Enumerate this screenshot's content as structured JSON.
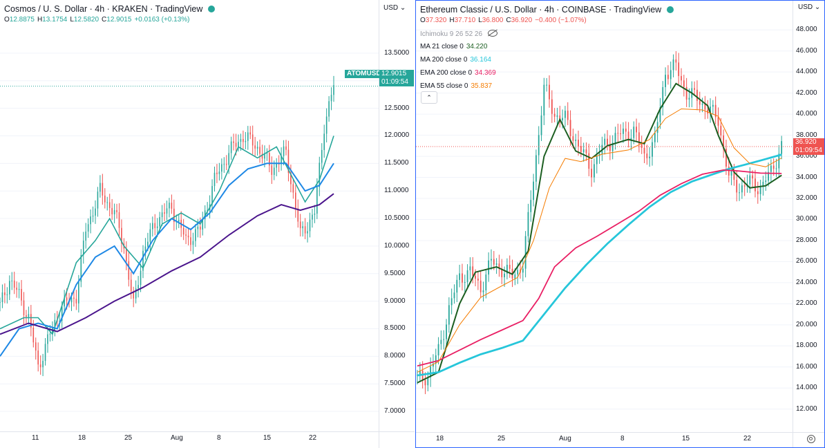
{
  "left": {
    "title": "Cosmos / U. S. Dollar · 4h · KRAKEN · TradingView",
    "ohlc": [
      {
        "k": "O",
        "v": "12.8875"
      },
      {
        "k": "H",
        "v": "13.1754"
      },
      {
        "k": "L",
        "v": "12.5820"
      },
      {
        "k": "C",
        "v": "12.9015"
      },
      {
        "k": "",
        "v": "+0.0163 (+0.13%)"
      }
    ],
    "currency": "USD",
    "symbol_tag": "ATOMUSD",
    "price_tag": "12.9015",
    "countdown": "01:09:54"
  },
  "right": {
    "title": "Ethereum Classic / U.S. Dollar · 4h · COINBASE · TradingView",
    "ohlc": [
      {
        "k": "O",
        "v": "37.320"
      },
      {
        "k": "H",
        "v": "37.710"
      },
      {
        "k": "L",
        "v": "36.800"
      },
      {
        "k": "C",
        "v": "36.920"
      },
      {
        "k": "",
        "v": "−0.400 (−1.07%)"
      }
    ],
    "ichimoku": "Ichimoku 9 26 52 26",
    "indicators": [
      {
        "label": "MA 21 close 0",
        "value": "34.220",
        "color": "#1b5e20"
      },
      {
        "label": "MA 200 close 0",
        "value": "36.164",
        "color": "#26c6da"
      },
      {
        "label": "EMA 200 close 0",
        "value": "34.369",
        "color": "#e91e63"
      },
      {
        "label": "EMA 55 close 0",
        "value": "35.837",
        "color": "#f57c00"
      }
    ],
    "collapse_glyph": "⌃",
    "currency": "USD",
    "price_tag": "36.920",
    "countdown": "01:09:54"
  },
  "colors": {
    "up": "#26a69a",
    "down": "#ef5350",
    "tag_left": "#26a69a",
    "tag_right": "#ef5350",
    "accent": "#2962ff"
  },
  "chart_data": [
    {
      "type": "candlestick",
      "title": "Cosmos / U. S. Dollar · 4h · KRAKEN",
      "x_ticks": [
        "11",
        "18",
        "25",
        "Aug",
        "8",
        "15",
        "22"
      ],
      "y_ticks": [
        "7.0000",
        "7.5000",
        "8.0000",
        "8.5000",
        "9.0000",
        "9.5000",
        "10.0000",
        "10.5000",
        "11.0000",
        "11.5000",
        "12.0000",
        "12.5000",
        "13.0000",
        "13.5000"
      ],
      "ylim": [
        6.85,
        13.75
      ],
      "last_price": 12.9015,
      "price_path": [
        [
          0,
          8.9
        ],
        [
          4,
          9.4
        ],
        [
          8,
          9.1
        ],
        [
          12,
          8.7
        ],
        [
          16,
          7.8
        ],
        [
          20,
          8.3
        ],
        [
          26,
          8.9
        ],
        [
          32,
          9.1
        ],
        [
          36,
          10.3
        ],
        [
          42,
          11.0
        ],
        [
          48,
          10.6
        ],
        [
          52,
          10.0
        ],
        [
          56,
          8.9
        ],
        [
          60,
          9.9
        ],
        [
          66,
          10.5
        ],
        [
          72,
          10.7
        ],
        [
          78,
          10.1
        ],
        [
          84,
          10.3
        ],
        [
          90,
          11.2
        ],
        [
          96,
          11.7
        ],
        [
          102,
          12.0
        ],
        [
          108,
          11.8
        ],
        [
          114,
          11.4
        ],
        [
          120,
          11.7
        ],
        [
          126,
          10.2
        ],
        [
          132,
          10.6
        ],
        [
          136,
          12.2
        ],
        [
          140,
          12.9
        ]
      ],
      "series": [
        {
          "name": "moving average (teal)",
          "color": "#26a69a",
          "points": [
            [
              0,
              8.5
            ],
            [
              10,
              8.7
            ],
            [
              16,
              8.7
            ],
            [
              22,
              8.4
            ],
            [
              32,
              9.7
            ],
            [
              40,
              10.1
            ],
            [
              46,
              10.5
            ],
            [
              52,
              10.0
            ],
            [
              60,
              9.6
            ],
            [
              68,
              10.4
            ],
            [
              76,
              10.6
            ],
            [
              84,
              10.4
            ],
            [
              92,
              11.0
            ],
            [
              100,
              11.8
            ],
            [
              108,
              11.6
            ],
            [
              116,
              11.8
            ],
            [
              122,
              11.3
            ],
            [
              128,
              10.8
            ],
            [
              134,
              11.2
            ],
            [
              140,
              12.0
            ]
          ]
        },
        {
          "name": "moving average (blue)",
          "color": "#1e88e5",
          "points": [
            [
              0,
              8.0
            ],
            [
              8,
              8.5
            ],
            [
              16,
              8.6
            ],
            [
              24,
              8.5
            ],
            [
              32,
              9.3
            ],
            [
              40,
              9.8
            ],
            [
              48,
              10.0
            ],
            [
              56,
              9.5
            ],
            [
              64,
              10.1
            ],
            [
              72,
              10.5
            ],
            [
              80,
              10.3
            ],
            [
              88,
              10.6
            ],
            [
              96,
              11.1
            ],
            [
              104,
              11.4
            ],
            [
              112,
              11.5
            ],
            [
              120,
              11.5
            ],
            [
              128,
              11.0
            ],
            [
              134,
              11.1
            ],
            [
              140,
              11.5
            ]
          ]
        },
        {
          "name": "moving average (purple)",
          "color": "#4a148c",
          "points": [
            [
              0,
              8.4
            ],
            [
              12,
              8.6
            ],
            [
              24,
              8.45
            ],
            [
              36,
              8.7
            ],
            [
              48,
              9.0
            ],
            [
              60,
              9.25
            ],
            [
              72,
              9.55
            ],
            [
              84,
              9.8
            ],
            [
              96,
              10.2
            ],
            [
              108,
              10.55
            ],
            [
              118,
              10.75
            ],
            [
              126,
              10.65
            ],
            [
              134,
              10.75
            ],
            [
              140,
              10.95
            ]
          ]
        }
      ]
    },
    {
      "type": "candlestick",
      "title": "Ethereum Classic / U.S. Dollar · 4h · COINBASE",
      "x_ticks": [
        "18",
        "25",
        "Aug",
        "8",
        "15",
        "22"
      ],
      "y_ticks": [
        "12.000",
        "14.000",
        "16.000",
        "18.000",
        "20.000",
        "22.000",
        "24.000",
        "26.000",
        "28.000",
        "30.000",
        "32.000",
        "34.000",
        "36.000",
        "38.000",
        "40.000",
        "42.000",
        "44.000",
        "46.000",
        "48.000"
      ],
      "ylim": [
        10.8,
        49.0
      ],
      "last_price": 36.92,
      "price_path": [
        [
          0,
          14.8
        ],
        [
          4,
          15.2
        ],
        [
          8,
          17.5
        ],
        [
          12,
          21.5
        ],
        [
          16,
          24.6
        ],
        [
          20,
          25.0
        ],
        [
          24,
          23.5
        ],
        [
          28,
          26.0
        ],
        [
          32,
          25.3
        ],
        [
          36,
          24.6
        ],
        [
          40,
          25.8
        ],
        [
          44,
          34.0
        ],
        [
          48,
          42.5
        ],
        [
          52,
          40.0
        ],
        [
          56,
          39.5
        ],
        [
          62,
          36.5
        ],
        [
          66,
          34.8
        ],
        [
          70,
          36.8
        ],
        [
          76,
          38.0
        ],
        [
          82,
          38.4
        ],
        [
          86,
          36.0
        ],
        [
          90,
          37.5
        ],
        [
          94,
          44.0
        ],
        [
          98,
          44.5
        ],
        [
          102,
          42.0
        ],
        [
          106,
          41.5
        ],
        [
          110,
          40.5
        ],
        [
          114,
          39.5
        ],
        [
          118,
          34.0
        ],
        [
          122,
          33.0
        ],
        [
          126,
          33.5
        ],
        [
          130,
          33.0
        ],
        [
          134,
          34.5
        ],
        [
          138,
          37.0
        ]
      ],
      "series": [
        {
          "name": "MA 21 close 0",
          "color": "#1b5e20",
          "value": 34.22,
          "points": [
            [
              0,
              14.5
            ],
            [
              8,
              15.5
            ],
            [
              16,
              22.0
            ],
            [
              22,
              25.0
            ],
            [
              30,
              25.5
            ],
            [
              36,
              24.8
            ],
            [
              42,
              27.0
            ],
            [
              48,
              36.0
            ],
            [
              54,
              39.5
            ],
            [
              60,
              36.5
            ],
            [
              66,
              35.8
            ],
            [
              72,
              37.0
            ],
            [
              80,
              37.6
            ],
            [
              86,
              37.2
            ],
            [
              92,
              40.5
            ],
            [
              98,
              42.9
            ],
            [
              104,
              42.0
            ],
            [
              110,
              40.8
            ],
            [
              114,
              38.0
            ],
            [
              120,
              34.5
            ],
            [
              126,
              33.0
            ],
            [
              132,
              33.2
            ],
            [
              138,
              34.2
            ]
          ]
        },
        {
          "name": "MA 200 close 0",
          "color": "#26c6da",
          "value": 36.164,
          "points": [
            [
              0,
              15.2
            ],
            [
              8,
              15.5
            ],
            [
              16,
              16.4
            ],
            [
              24,
              17.2
            ],
            [
              32,
              17.8
            ],
            [
              40,
              18.5
            ],
            [
              48,
              21.0
            ],
            [
              56,
              23.5
            ],
            [
              64,
              25.7
            ],
            [
              72,
              27.7
            ],
            [
              80,
              29.5
            ],
            [
              88,
              31.2
            ],
            [
              96,
              32.6
            ],
            [
              104,
              33.6
            ],
            [
              112,
              34.3
            ],
            [
              118,
              34.8
            ],
            [
              124,
              35.2
            ],
            [
              130,
              35.6
            ],
            [
              138,
              36.16
            ]
          ]
        },
        {
          "name": "EMA 200 close 0",
          "color": "#e91e63",
          "value": 34.369,
          "points": [
            [
              0,
              16.1
            ],
            [
              8,
              16.6
            ],
            [
              16,
              17.6
            ],
            [
              24,
              18.6
            ],
            [
              32,
              19.5
            ],
            [
              40,
              20.4
            ],
            [
              46,
              22.5
            ],
            [
              52,
              25.5
            ],
            [
              60,
              27.3
            ],
            [
              68,
              28.4
            ],
            [
              76,
              29.6
            ],
            [
              84,
              30.8
            ],
            [
              92,
              32.3
            ],
            [
              100,
              33.4
            ],
            [
              108,
              34.3
            ],
            [
              116,
              34.7
            ],
            [
              122,
              34.6
            ],
            [
              130,
              34.4
            ],
            [
              138,
              34.37
            ]
          ]
        },
        {
          "name": "EMA 55 close 0",
          "color": "#f57c00",
          "value": 35.837,
          "points": [
            [
              0,
              15.5
            ],
            [
              8,
              16.5
            ],
            [
              16,
              20.0
            ],
            [
              24,
              22.6
            ],
            [
              32,
              23.7
            ],
            [
              38,
              24.5
            ],
            [
              44,
              28.0
            ],
            [
              50,
              33.0
            ],
            [
              56,
              35.8
            ],
            [
              62,
              35.5
            ],
            [
              70,
              36.2
            ],
            [
              80,
              36.6
            ],
            [
              88,
              37.6
            ],
            [
              94,
              39.6
            ],
            [
              100,
              40.5
            ],
            [
              108,
              40.4
            ],
            [
              114,
              39.8
            ],
            [
              120,
              36.8
            ],
            [
              126,
              35.3
            ],
            [
              132,
              35.0
            ],
            [
              138,
              35.84
            ]
          ]
        }
      ]
    }
  ]
}
